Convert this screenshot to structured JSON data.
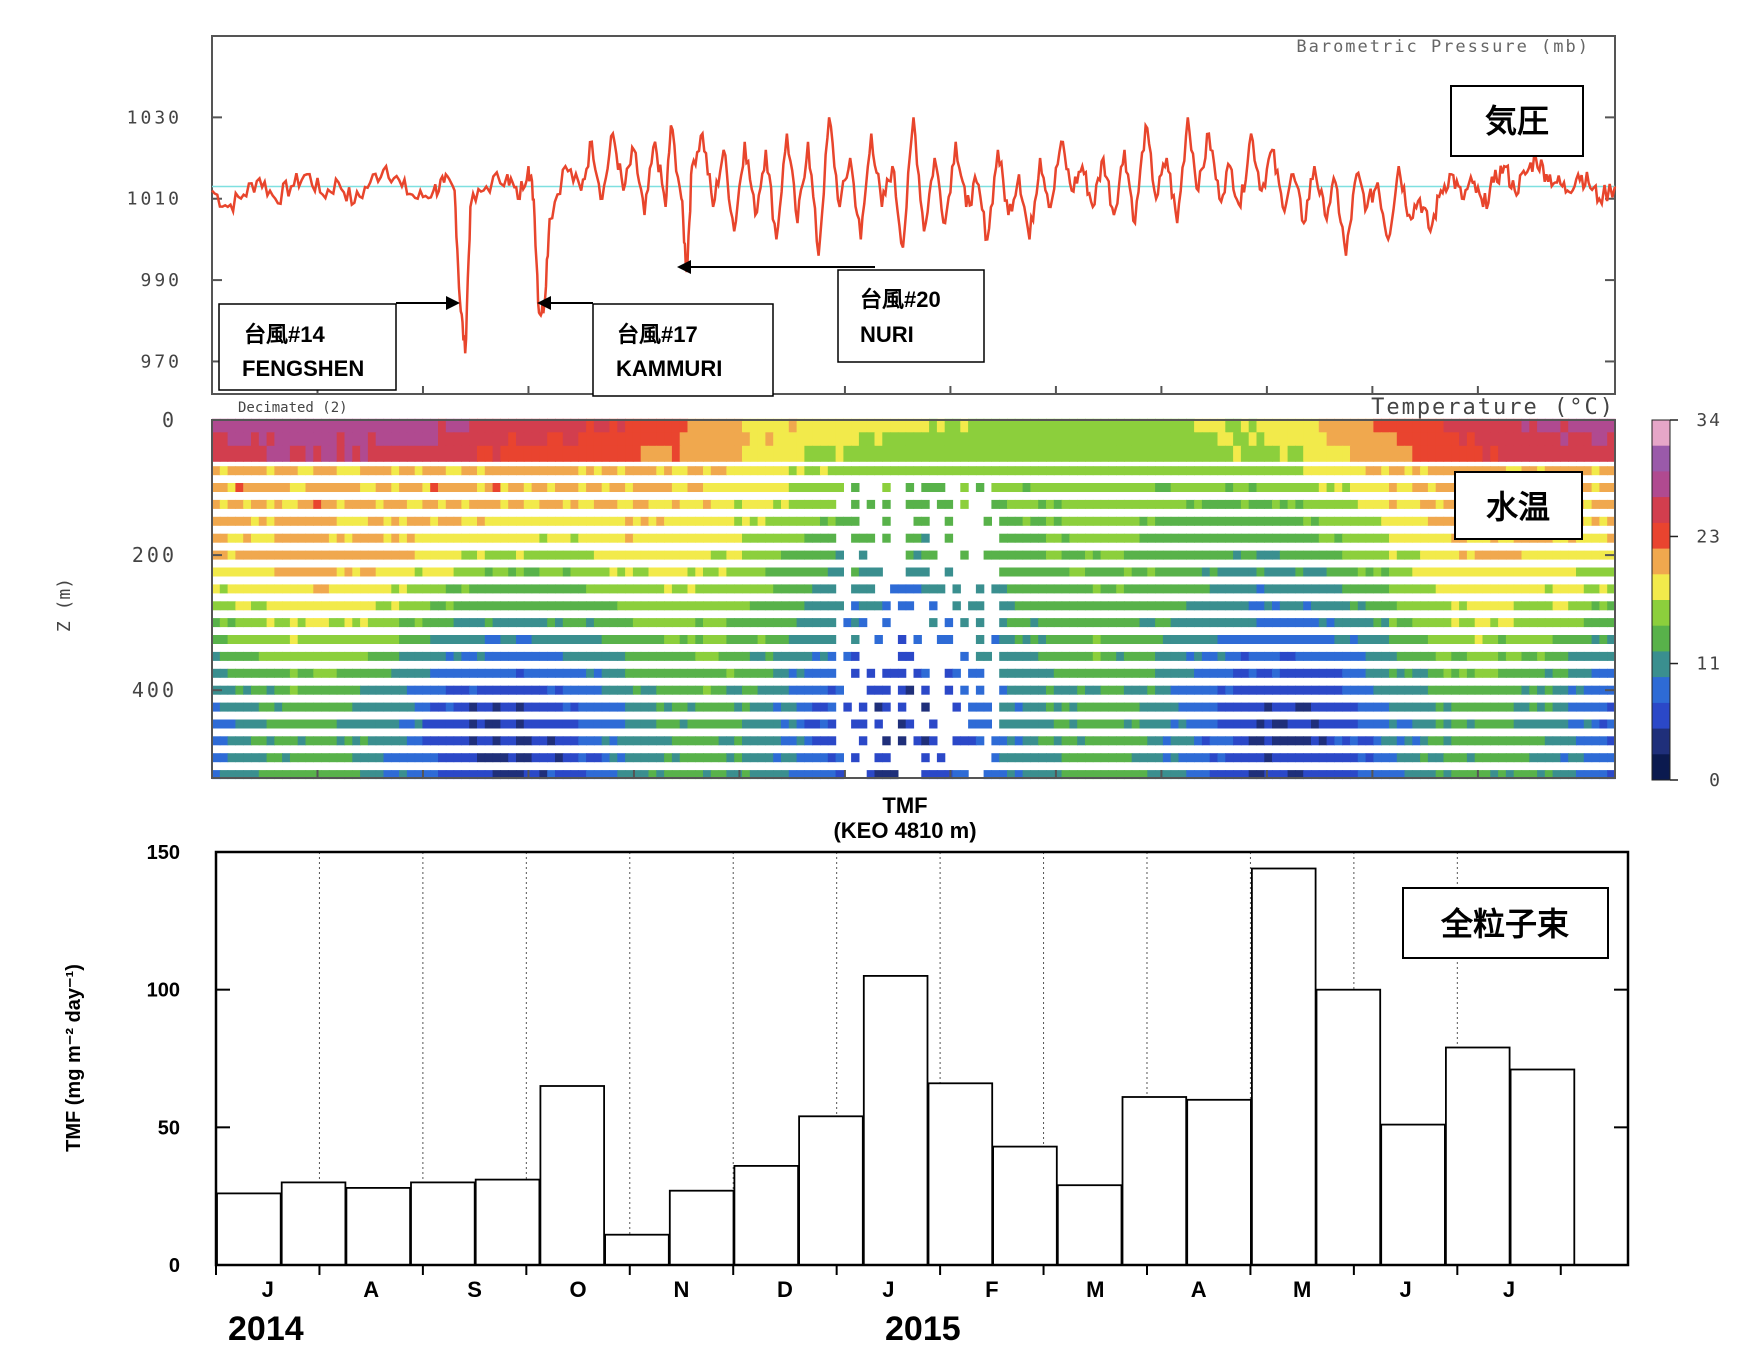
{
  "colors": {
    "pressure_line": "#e8452c",
    "mean_line": "#7fe0e0",
    "bar_fill": "#ffffff",
    "colorbar": [
      "#0b1a4f",
      "#1f2f7a",
      "#2b48c8",
      "#2e6bd6",
      "#3a8f8f",
      "#58b24a",
      "#8ccf3c",
      "#f2ea4b",
      "#f0a84e",
      "#e9442f",
      "#d23e4e",
      "#b04a90",
      "#9a5aaa",
      "#e6a6c8"
    ]
  },
  "labels": {
    "box_pressure": "気圧",
    "box_temp": "水温",
    "box_flux": "全粒子束",
    "typhoon14_line1": "台風#14",
    "typhoon14_line2": "FENGSHEN",
    "typhoon17_line1": "台風#17",
    "typhoon17_line2": "KAMMURI",
    "typhoon20_line1": "台風#20",
    "typhoon20_line2": "NURI",
    "year_2014": "2014",
    "year_2015": "2015"
  },
  "chart_data": [
    {
      "type": "line",
      "title": "Barometric Pressure (mb)",
      "ylim": [
        962,
        1050
      ],
      "yticks": [
        "1030",
        "1010",
        "990",
        "970"
      ],
      "ytick_values": [
        1030,
        1010,
        990,
        970
      ],
      "x_range_months": [
        0,
        13.3
      ],
      "mean_value": 1013,
      "series": [
        {
          "values": [
            [
              0.0,
              1012
            ],
            [
              0.15,
              1008
            ],
            [
              0.3,
              1011
            ],
            [
              0.45,
              1015
            ],
            [
              0.6,
              1010
            ],
            [
              0.75,
              1013
            ],
            [
              0.9,
              1016
            ],
            [
              1.05,
              1011
            ],
            [
              1.2,
              1014
            ],
            [
              1.35,
              1009
            ],
            [
              1.5,
              1014
            ],
            [
              1.65,
              1018
            ],
            [
              1.8,
              1013
            ],
            [
              1.95,
              1010
            ],
            [
              2.1,
              1012
            ],
            [
              2.2,
              1014
            ],
            [
              2.3,
              1012
            ],
            [
              2.35,
              985
            ],
            [
              2.4,
              972
            ],
            [
              2.45,
              1008
            ],
            [
              2.6,
              1013
            ],
            [
              2.8,
              1016
            ],
            [
              2.9,
              1010
            ],
            [
              3.0,
              1018
            ],
            [
              3.05,
              1010
            ],
            [
              3.1,
              982
            ],
            [
              3.15,
              984
            ],
            [
              3.2,
              1005
            ],
            [
              3.35,
              1018
            ],
            [
              3.5,
              1012
            ],
            [
              3.6,
              1024
            ],
            [
              3.7,
              1010
            ],
            [
              3.8,
              1026
            ],
            [
              3.9,
              1012
            ],
            [
              4.0,
              1022
            ],
            [
              4.1,
              1006
            ],
            [
              4.2,
              1024
            ],
            [
              4.3,
              1008
            ],
            [
              4.35,
              1028
            ],
            [
              4.45,
              1010
            ],
            [
              4.5,
              992
            ],
            [
              4.55,
              1018
            ],
            [
              4.65,
              1026
            ],
            [
              4.75,
              1008
            ],
            [
              4.85,
              1022
            ],
            [
              4.95,
              1002
            ],
            [
              5.05,
              1024
            ],
            [
              5.15,
              1006
            ],
            [
              5.25,
              1022
            ],
            [
              5.35,
              1000
            ],
            [
              5.45,
              1026
            ],
            [
              5.55,
              1004
            ],
            [
              5.65,
              1024
            ],
            [
              5.75,
              996
            ],
            [
              5.85,
              1030
            ],
            [
              5.95,
              1008
            ],
            [
              6.05,
              1020
            ],
            [
              6.15,
              1000
            ],
            [
              6.25,
              1026
            ],
            [
              6.35,
              1008
            ],
            [
              6.45,
              1018
            ],
            [
              6.55,
              998
            ],
            [
              6.65,
              1030
            ],
            [
              6.75,
              1002
            ],
            [
              6.85,
              1020
            ],
            [
              6.95,
              1004
            ],
            [
              7.05,
              1024
            ],
            [
              7.15,
              1008
            ],
            [
              7.25,
              1014
            ],
            [
              7.35,
              1000
            ],
            [
              7.45,
              1022
            ],
            [
              7.55,
              1006
            ],
            [
              7.65,
              1016
            ],
            [
              7.75,
              1000
            ],
            [
              7.85,
              1020
            ],
            [
              7.95,
              1008
            ],
            [
              8.05,
              1024
            ],
            [
              8.15,
              1012
            ],
            [
              8.25,
              1018
            ],
            [
              8.35,
              1008
            ],
            [
              8.45,
              1020
            ],
            [
              8.55,
              1006
            ],
            [
              8.65,
              1022
            ],
            [
              8.75,
              1004
            ],
            [
              8.85,
              1028
            ],
            [
              8.95,
              1010
            ],
            [
              9.05,
              1020
            ],
            [
              9.15,
              1004
            ],
            [
              9.25,
              1030
            ],
            [
              9.35,
              1012
            ],
            [
              9.45,
              1026
            ],
            [
              9.55,
              1010
            ],
            [
              9.65,
              1018
            ],
            [
              9.75,
              1008
            ],
            [
              9.85,
              1026
            ],
            [
              9.95,
              1012
            ],
            [
              10.05,
              1022
            ],
            [
              10.15,
              1008
            ],
            [
              10.25,
              1016
            ],
            [
              10.35,
              1004
            ],
            [
              10.45,
              1018
            ],
            [
              10.55,
              1006
            ],
            [
              10.65,
              1014
            ],
            [
              10.75,
              996
            ],
            [
              10.85,
              1016
            ],
            [
              10.95,
              1008
            ],
            [
              11.05,
              1014
            ],
            [
              11.15,
              1000
            ],
            [
              11.25,
              1018
            ],
            [
              11.35,
              1006
            ],
            [
              11.45,
              1010
            ],
            [
              11.55,
              1002
            ],
            [
              11.65,
              1012
            ],
            [
              11.75,
              1016
            ],
            [
              11.85,
              1010
            ],
            [
              11.95,
              1014
            ],
            [
              12.05,
              1008
            ],
            [
              12.15,
              1014
            ],
            [
              12.25,
              1018
            ],
            [
              12.35,
              1012
            ],
            [
              12.45,
              1016
            ],
            [
              12.55,
              1020
            ],
            [
              12.65,
              1016
            ],
            [
              12.75,
              1014
            ],
            [
              12.85,
              1012
            ],
            [
              12.95,
              1016
            ],
            [
              13.05,
              1014
            ],
            [
              13.15,
              1010
            ],
            [
              13.3,
              1013
            ]
          ]
        }
      ]
    },
    {
      "type": "heatmap",
      "title": "Temperature (°C)",
      "corner_label": "Decimated (2)",
      "ylabel": "Z (m)",
      "yticks": [
        "0",
        "200",
        "400"
      ],
      "ytick_values": [
        0,
        200,
        400
      ],
      "ylim_m": [
        0,
        530
      ],
      "colorbar_ticks": [
        "34",
        "23",
        "11",
        "0"
      ],
      "colorbar_tick_values": [
        34,
        23,
        11,
        0
      ],
      "depth_levels_m": [
        10,
        30,
        50,
        75,
        100,
        125,
        150,
        175,
        200,
        225,
        250,
        275,
        300,
        325,
        350,
        375,
        400,
        425,
        450,
        475,
        500,
        525
      ],
      "surface_temp_by_month": [
        28,
        28.5,
        28,
        26,
        24,
        20,
        18,
        17,
        16,
        16.5,
        18,
        22,
        26,
        28
      ]
    },
    {
      "type": "bar",
      "title": "TMF",
      "subtitle": "(KEO 4810 m)",
      "ylabel": "TMF (mg m⁻² day⁻¹)",
      "ylim": [
        0,
        150
      ],
      "yticks": [
        "0",
        "50",
        "100",
        "150"
      ],
      "ytick_values": [
        0,
        50,
        100,
        150
      ],
      "x_month_labels": [
        "J",
        "A",
        "S",
        "O",
        "N",
        "D",
        "J",
        "F",
        "M",
        "A",
        "M",
        "J",
        "J"
      ],
      "values": [
        26,
        30,
        28,
        30,
        31,
        65,
        11,
        27,
        36,
        54,
        105,
        66,
        43,
        29,
        61,
        60,
        144,
        100,
        51,
        79,
        71
      ]
    }
  ]
}
